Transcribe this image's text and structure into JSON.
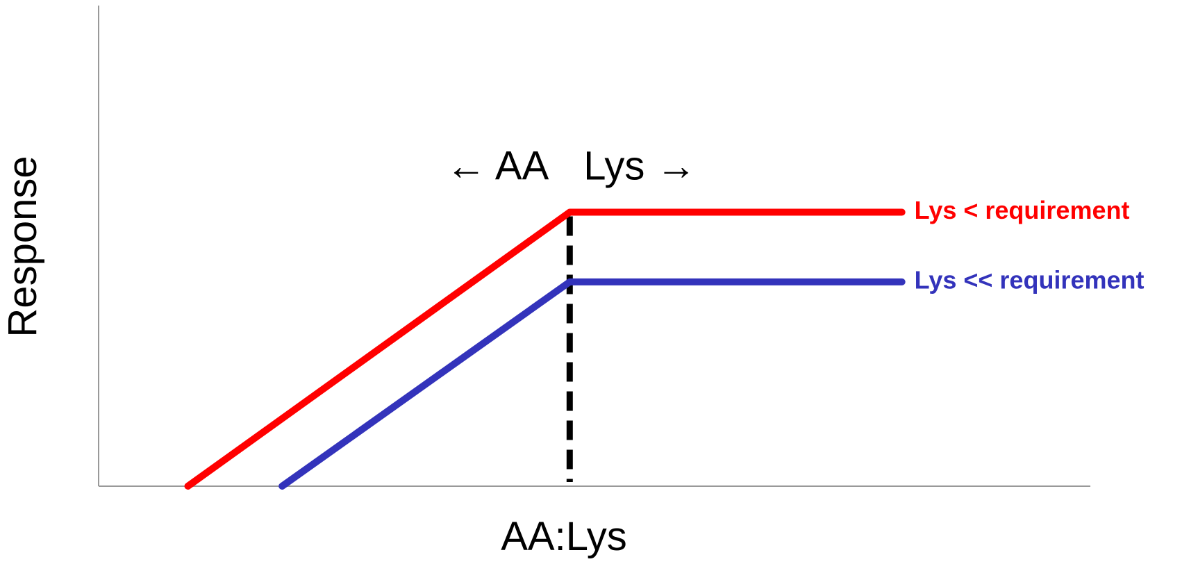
{
  "chart_data": {
    "type": "line",
    "title": "",
    "xlabel": "AA:Lys",
    "ylabel": "Response",
    "xlim": [
      0,
      10
    ],
    "ylim": [
      0,
      10
    ],
    "grid": false,
    "legend": "right (inline at line ends)",
    "series": [
      {
        "name": "Lys < requirement",
        "color": "#ff0000",
        "x": [
          0.9,
          4.75,
          8.1
        ],
        "y": [
          0,
          5.7,
          5.7
        ]
      },
      {
        "name": "Lys << requirement",
        "color": "#3333bb",
        "x": [
          1.85,
          4.75,
          8.1
        ],
        "y": [
          0,
          4.25,
          4.25
        ]
      }
    ],
    "reference_lines": [
      {
        "type": "vertical",
        "style": "dashed",
        "color": "#000000",
        "x": 4.75,
        "y_range": [
          0,
          5.7
        ]
      }
    ],
    "annotations": [
      {
        "text_left": "← AA",
        "text_right": "Lys →",
        "x": 4.75,
        "y": 6.6
      }
    ]
  }
}
